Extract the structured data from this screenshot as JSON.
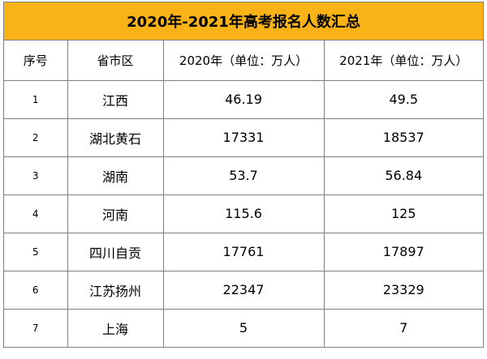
{
  "title": "2020年-2021年高考报名人数汇总",
  "headers": [
    "序号",
    "省市区",
    "2020年（单位：万人）",
    "2021年（单位：万人）"
  ],
  "rows": [
    {
      "index": "1",
      "region": "江西",
      "y2020": "46.19",
      "y2021": "49.5"
    },
    {
      "index": "2",
      "region": "湖北黄石",
      "y2020": "17331",
      "y2021": "18537"
    },
    {
      "index": "3",
      "region": "湖南",
      "y2020": "53.7",
      "y2021": "56.84"
    },
    {
      "index": "4",
      "region": "河南",
      "y2020": "115.6",
      "y2021": "125"
    },
    {
      "index": "5",
      "region": "四川自贡",
      "y2020": "17761",
      "y2021": "17897"
    },
    {
      "index": "6",
      "region": "江苏扬州",
      "y2020": "22347",
      "y2021": "23329"
    },
    {
      "index": "7",
      "region": "上海",
      "y2020": "5",
      "y2021": "7"
    }
  ],
  "colors": {
    "title_background": "#f9b316",
    "border": "#7f7f7f"
  }
}
